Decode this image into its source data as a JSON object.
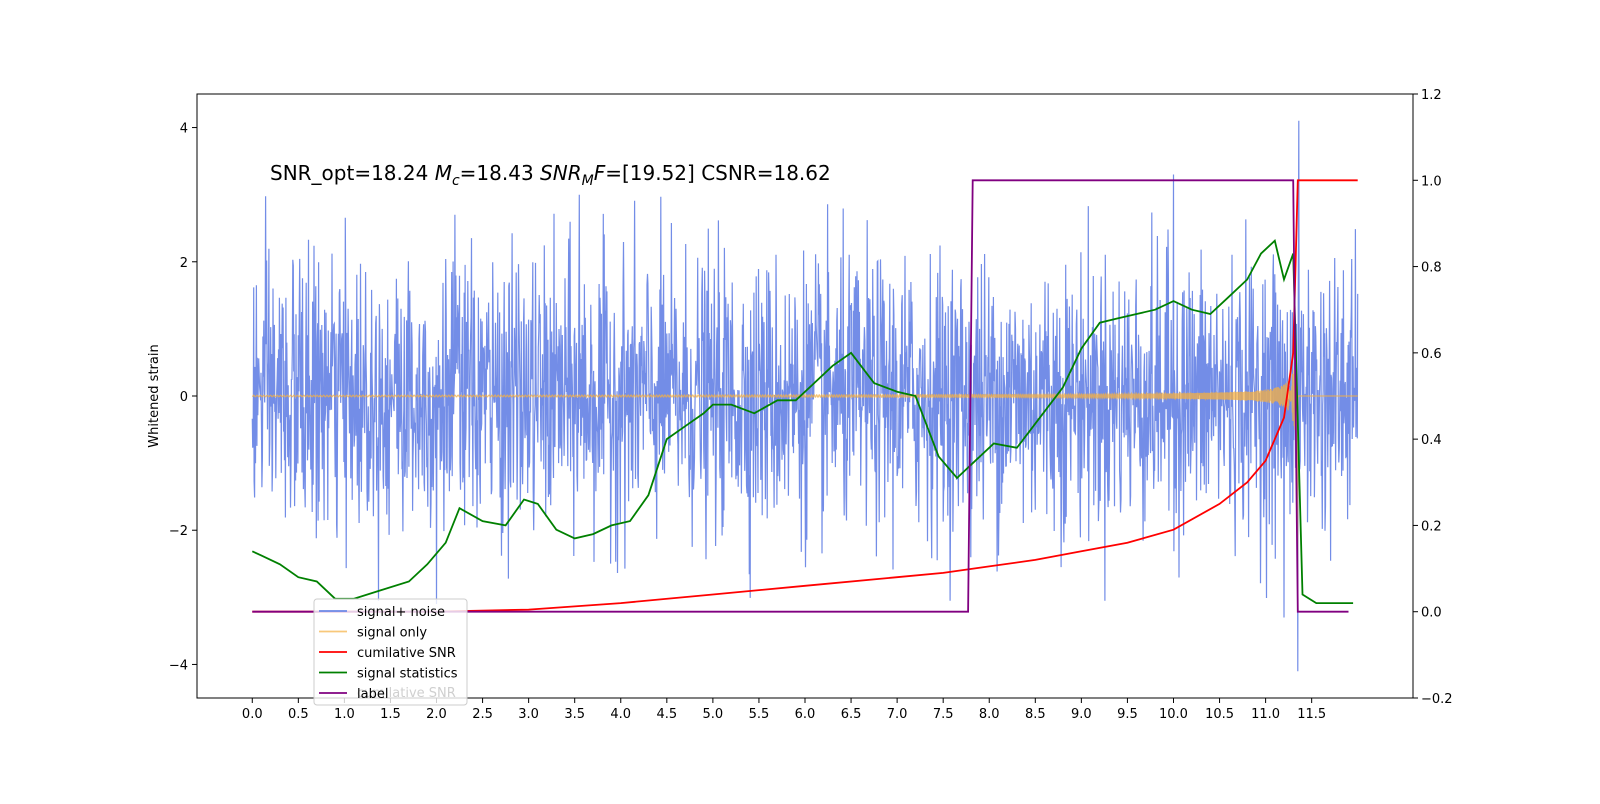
{
  "chart_data": {
    "type": "line",
    "title": "",
    "annotation": "SNR_opt=18.24 $M_c$=18.43  $SNR_MF$=[19.52] CSNR=18.62",
    "annotation_parts": {
      "snr_opt": "SNR_opt=18.24 ",
      "mc_symbol": "M",
      "mc_sub": "c",
      "mc_value": "=18.43  ",
      "snrmf_symbol": "SNR",
      "snrmf_sub": "M",
      "snrmf_f": "F",
      "snrmf_value": "=[19.52] CSNR=18.62"
    },
    "xlabel": "",
    "ylabel": "Whitened strain",
    "xlim": [
      -0.6,
      12.6
    ],
    "ylim": [
      -4.5,
      4.5
    ],
    "y2lim": [
      -0.2,
      1.2
    ],
    "grid": false,
    "legend_position": "lower-left",
    "x_ticks": [
      "0.0",
      "0.5",
      "1.0",
      "1.5",
      "2.0",
      "2.5",
      "3.0",
      "3.5",
      "4.0",
      "4.5",
      "5.0",
      "5.5",
      "6.0",
      "6.5",
      "7.0",
      "7.5",
      "8.0",
      "8.5",
      "9.0",
      "9.5",
      "10.0",
      "10.5",
      "11.0",
      "11.5"
    ],
    "y_ticks": [
      "4",
      "2",
      "0",
      "−2",
      "−4"
    ],
    "y2_ticks": [
      "1.2",
      "1.0",
      "0.8",
      "0.6",
      "0.4",
      "0.2",
      "0.0",
      "−0.2"
    ],
    "series": [
      {
        "name": "signal+ noise",
        "color": "#6b87e6",
        "axis": "left",
        "x_range": [
          0.0,
          12.0
        ],
        "noise_std": 1.0,
        "peaks": [
          [
            2.2,
            2.7
          ],
          [
            3.55,
            3.0
          ],
          [
            10.0,
            3.3
          ],
          [
            11.36,
            4.1
          ],
          [
            11.35,
            -4.1
          ],
          [
            11.2,
            -3.3
          ],
          [
            2.0,
            -3.1
          ]
        ]
      },
      {
        "name": "signal only",
        "color": "#f5b041",
        "axis": "left",
        "x_range": [
          0.0,
          12.0
        ],
        "merger_x": 11.35,
        "peak_amplitude": 3.3
      },
      {
        "name": "cumilative SNR",
        "color": "#ff0000",
        "axis": "right",
        "x": [
          0.0,
          1.0,
          2.0,
          3.0,
          4.0,
          5.0,
          6.0,
          7.0,
          7.5,
          8.0,
          8.5,
          9.0,
          9.5,
          10.0,
          10.5,
          10.8,
          11.0,
          11.2,
          11.3,
          11.35,
          12.0
        ],
        "y": [
          0.0,
          0.0,
          0.0,
          0.005,
          0.02,
          0.04,
          0.06,
          0.08,
          0.09,
          0.105,
          0.12,
          0.14,
          0.16,
          0.19,
          0.25,
          0.3,
          0.35,
          0.45,
          0.6,
          1.0,
          1.0
        ]
      },
      {
        "name": "signal statistics",
        "color": "#008000",
        "axis": "right",
        "x": [
          0.0,
          0.1,
          0.3,
          0.5,
          0.7,
          0.9,
          1.1,
          1.4,
          1.7,
          1.9,
          2.1,
          2.25,
          2.5,
          2.75,
          2.95,
          3.1,
          3.3,
          3.5,
          3.7,
          3.9,
          4.1,
          4.3,
          4.5,
          4.7,
          4.9,
          5.0,
          5.2,
          5.45,
          5.7,
          5.9,
          6.1,
          6.3,
          6.5,
          6.75,
          7.0,
          7.2,
          7.45,
          7.65,
          7.85,
          8.05,
          8.3,
          8.55,
          8.8,
          9.0,
          9.2,
          9.4,
          9.6,
          9.8,
          10.0,
          10.2,
          10.4,
          10.6,
          10.8,
          10.95,
          11.1,
          11.2,
          11.3,
          11.4,
          11.55,
          11.8,
          11.95
        ],
        "y": [
          0.14,
          0.13,
          0.11,
          0.08,
          0.07,
          0.03,
          0.03,
          0.05,
          0.07,
          0.11,
          0.16,
          0.24,
          0.21,
          0.2,
          0.26,
          0.25,
          0.19,
          0.17,
          0.18,
          0.2,
          0.21,
          0.27,
          0.4,
          0.43,
          0.46,
          0.48,
          0.48,
          0.46,
          0.49,
          0.49,
          0.53,
          0.57,
          0.6,
          0.53,
          0.51,
          0.5,
          0.36,
          0.31,
          0.35,
          0.39,
          0.38,
          0.45,
          0.52,
          0.61,
          0.67,
          0.68,
          0.69,
          0.7,
          0.72,
          0.7,
          0.69,
          0.73,
          0.77,
          0.83,
          0.86,
          0.77,
          0.83,
          0.04,
          0.02,
          0.02,
          0.02
        ]
      },
      {
        "name": "label",
        "color": "#800080",
        "axis": "right",
        "x": [
          0.0,
          7.77,
          7.82,
          11.3,
          11.35,
          11.9
        ],
        "y": [
          0.0,
          0.0,
          1.0,
          1.0,
          0.0,
          0.0
        ]
      }
    ],
    "legend_entries": [
      "signal+ noise",
      "signal only",
      "cumilative SNR",
      "signal statistics",
      "label"
    ],
    "legend_ghost_text": "cumilative SNR"
  }
}
